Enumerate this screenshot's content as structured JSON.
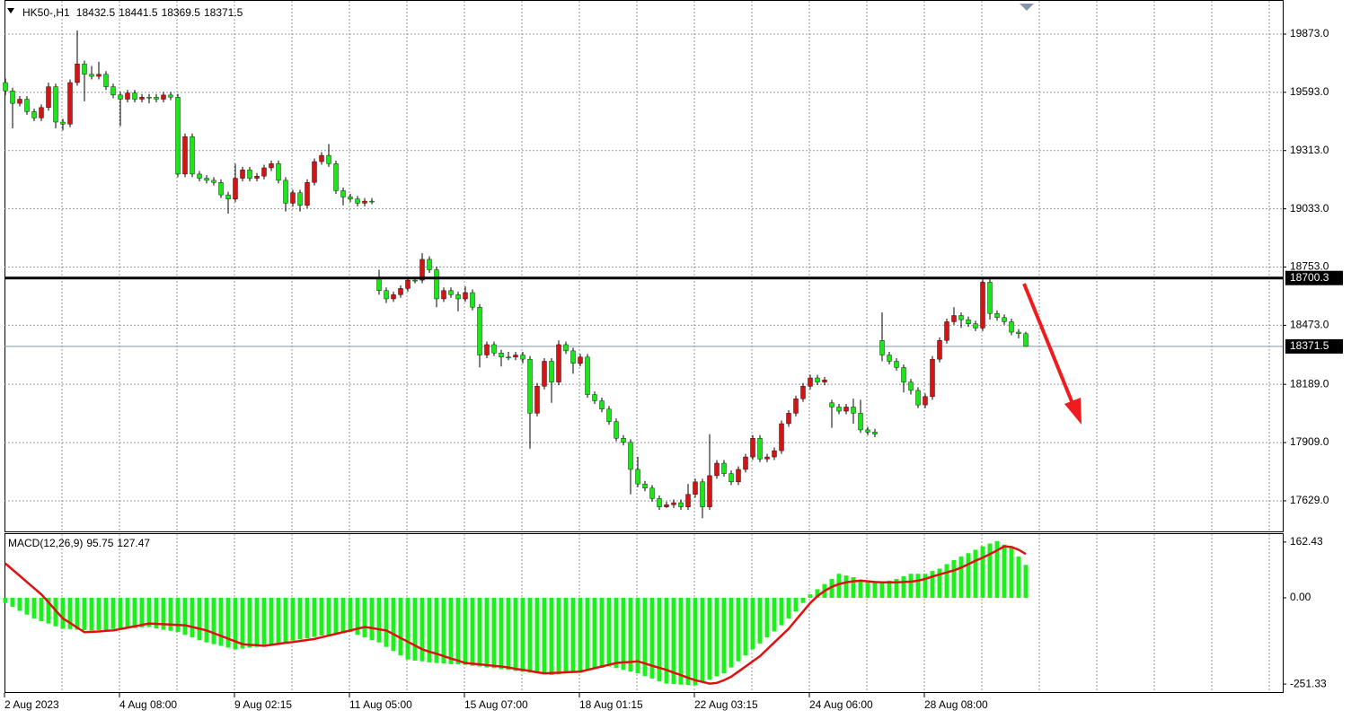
{
  "chart_data": [
    {
      "type": "candlestick",
      "symbol": "HK50-,H1",
      "categories": [
        "2 Aug 2023",
        null,
        null,
        null,
        null,
        null,
        null,
        null,
        null,
        null,
        null,
        null,
        null,
        null,
        null,
        null,
        "4 Aug 08:00",
        null,
        null,
        null,
        null,
        null,
        null,
        null,
        null,
        null,
        null,
        null,
        null,
        null,
        null,
        null,
        "9 Aug 02:15",
        null,
        null,
        null,
        null,
        null,
        null,
        null,
        null,
        null,
        null,
        null,
        null,
        null,
        null,
        null,
        "11 Aug 05:00",
        null,
        null,
        null,
        null,
        null,
        null,
        null,
        null,
        null,
        null,
        null,
        null,
        null,
        null,
        null,
        "15 Aug 07:00",
        null,
        null,
        null,
        null,
        null,
        null,
        null,
        null,
        null,
        null,
        null,
        null,
        null,
        null,
        null,
        "18 Aug 01:15",
        null,
        null,
        null,
        null,
        null,
        null,
        null,
        null,
        null,
        null,
        null,
        null,
        null,
        null,
        null,
        "22 Aug 03:15",
        null,
        null,
        null,
        null,
        null,
        null,
        null,
        null,
        null,
        null,
        null,
        null,
        null,
        null,
        null,
        "24 Aug 06:00",
        null,
        null,
        null,
        null,
        null,
        null,
        null,
        null,
        null,
        null,
        null,
        null,
        null,
        null,
        null,
        "28 Aug 08:00",
        null,
        null,
        null,
        null,
        null,
        null,
        null,
        null,
        null,
        null,
        null,
        null,
        null,
        null
      ],
      "candles": [
        [
          19640,
          19660,
          19580,
          19600
        ],
        [
          19600,
          19615,
          19420,
          19540
        ],
        [
          19540,
          19575,
          19525,
          19560
        ],
        [
          19560,
          19575,
          19485,
          19500
        ],
        [
          19500,
          19515,
          19455,
          19470
        ],
        [
          19470,
          19535,
          19455,
          19520
        ],
        [
          19520,
          19640,
          19505,
          19620
        ],
        [
          19620,
          19635,
          19420,
          19450
        ],
        [
          19450,
          19465,
          19410,
          19440
        ],
        [
          19440,
          19655,
          19425,
          19640
        ],
        [
          19640,
          19890,
          19625,
          19730
        ],
        [
          19730,
          19745,
          19550,
          19680
        ],
        [
          19680,
          19720,
          19655,
          19670
        ],
        [
          19670,
          19740,
          19655,
          19680
        ],
        [
          19680,
          19695,
          19605,
          19620
        ],
        [
          19620,
          19635,
          19565,
          19580
        ],
        [
          19580,
          19595,
          19430,
          19560
        ],
        [
          19560,
          19605,
          19545,
          19590
        ],
        [
          19590,
          19605,
          19545,
          19560
        ],
        [
          19560,
          19585,
          19545,
          19570
        ],
        [
          19570,
          19585,
          19540,
          19570
        ],
        [
          19570,
          19585,
          19545,
          19560
        ],
        [
          19560,
          19595,
          19545,
          19580
        ],
        [
          19580,
          19595,
          19555,
          19570
        ],
        [
          19570,
          19585,
          19185,
          19200
        ],
        [
          19200,
          19395,
          19185,
          19380
        ],
        [
          19380,
          19395,
          19185,
          19200
        ],
        [
          19200,
          19215,
          19165,
          19180
        ],
        [
          19180,
          19195,
          19155,
          19170
        ],
        [
          19170,
          19185,
          19145,
          19160
        ],
        [
          19160,
          19175,
          19085,
          19100
        ],
        [
          19100,
          19115,
          19010,
          19080
        ],
        [
          19080,
          19250,
          19065,
          19180
        ],
        [
          19180,
          19235,
          19165,
          19220
        ],
        [
          19220,
          19235,
          19165,
          19180
        ],
        [
          19180,
          19205,
          19165,
          19190
        ],
        [
          19190,
          19245,
          19175,
          19230
        ],
        [
          19230,
          19265,
          19215,
          19250
        ],
        [
          19250,
          19265,
          19155,
          19170
        ],
        [
          19170,
          19185,
          19020,
          19060
        ],
        [
          19060,
          19125,
          19045,
          19110
        ],
        [
          19110,
          19125,
          19020,
          19050
        ],
        [
          19050,
          19175,
          19035,
          19160
        ],
        [
          19160,
          19275,
          19145,
          19260
        ],
        [
          19260,
          19305,
          19245,
          19290
        ],
        [
          19290,
          19345,
          19235,
          19250
        ],
        [
          19250,
          19265,
          19105,
          19120
        ],
        [
          19120,
          19135,
          19050,
          19090
        ],
        [
          19090,
          19105,
          19065,
          19080
        ],
        [
          19080,
          19095,
          19045,
          19060
        ],
        [
          19060,
          19085,
          19045,
          19070
        ],
        [
          19070,
          19085,
          19055,
          19070
        ],
        [
          18700,
          18740,
          18620,
          18640
        ],
        [
          18640,
          18655,
          18580,
          18600
        ],
        [
          18600,
          18635,
          18585,
          18620
        ],
        [
          18620,
          18665,
          18605,
          18650
        ],
        [
          18650,
          18705,
          18635,
          18690
        ],
        [
          18690,
          18705,
          18675,
          18690
        ],
        [
          18690,
          18820,
          18675,
          18790
        ],
        [
          18790,
          18805,
          18725,
          18740
        ],
        [
          18740,
          18755,
          18560,
          18600
        ],
        [
          18600,
          18655,
          18585,
          18640
        ],
        [
          18640,
          18655,
          18605,
          18620
        ],
        [
          18620,
          18635,
          18540,
          18600
        ],
        [
          18600,
          18660,
          18585,
          18630
        ],
        [
          18630,
          18645,
          18545,
          18560
        ],
        [
          18560,
          18575,
          18270,
          18330
        ],
        [
          18330,
          18395,
          18315,
          18380
        ],
        [
          18380,
          18395,
          18325,
          18340
        ],
        [
          18340,
          18355,
          18275,
          18320
        ],
        [
          18320,
          18345,
          18305,
          18320
        ],
        [
          18320,
          18345,
          18305,
          18330
        ],
        [
          18330,
          18345,
          18290,
          18310
        ],
        [
          18310,
          18325,
          17880,
          18050
        ],
        [
          18050,
          18195,
          18035,
          18180
        ],
        [
          18180,
          18315,
          18165,
          18300
        ],
        [
          18300,
          18315,
          18100,
          18200
        ],
        [
          18200,
          18400,
          18185,
          18380
        ],
        [
          18380,
          18395,
          18335,
          18350
        ],
        [
          18350,
          18365,
          18240,
          18290
        ],
        [
          18290,
          18335,
          18275,
          18320
        ],
        [
          18320,
          18335,
          18125,
          18140
        ],
        [
          18140,
          18155,
          18095,
          18110
        ],
        [
          18110,
          18125,
          18055,
          18070
        ],
        [
          18070,
          18085,
          17995,
          18010
        ],
        [
          18010,
          18025,
          17915,
          17930
        ],
        [
          17930,
          17945,
          17895,
          17910
        ],
        [
          17910,
          17925,
          17660,
          17780
        ],
        [
          17780,
          17840,
          17695,
          17710
        ],
        [
          17710,
          17725,
          17675,
          17690
        ],
        [
          17690,
          17705,
          17625,
          17640
        ],
        [
          17640,
          17655,
          17585,
          17600
        ],
        [
          17600,
          17625,
          17595,
          17610
        ],
        [
          17610,
          17635,
          17595,
          17620
        ],
        [
          17620,
          17635,
          17585,
          17600
        ],
        [
          17600,
          17710,
          17585,
          17660
        ],
        [
          17660,
          17735,
          17645,
          17720
        ],
        [
          17720,
          17735,
          17545,
          17600
        ],
        [
          17600,
          17950,
          17585,
          17750
        ],
        [
          17750,
          17825,
          17735,
          17810
        ],
        [
          17810,
          17825,
          17745,
          17760
        ],
        [
          17760,
          17775,
          17705,
          17720
        ],
        [
          17720,
          17795,
          17705,
          17780
        ],
        [
          17780,
          17855,
          17765,
          17840
        ],
        [
          17840,
          17945,
          17825,
          17930
        ],
        [
          17930,
          17945,
          17815,
          17830
        ],
        [
          17830,
          17855,
          17815,
          17840
        ],
        [
          17840,
          17885,
          17825,
          17870
        ],
        [
          17870,
          18015,
          17855,
          18000
        ],
        [
          18000,
          18065,
          17985,
          18050
        ],
        [
          18050,
          18135,
          18035,
          18120
        ],
        [
          18120,
          18195,
          18105,
          18180
        ],
        [
          18180,
          18235,
          18165,
          18220
        ],
        [
          18220,
          18235,
          18185,
          18200
        ],
        [
          18200,
          18225,
          18185,
          18210
        ],
        [
          18100,
          18115,
          17980,
          18080
        ],
        [
          18080,
          18095,
          18045,
          18060
        ],
        [
          18060,
          18095,
          18045,
          18080
        ],
        [
          18080,
          18120,
          18000,
          18050
        ],
        [
          18050,
          18115,
          17955,
          17970
        ],
        [
          17970,
          17985,
          17945,
          17960
        ],
        [
          17960,
          17975,
          17935,
          17950
        ],
        [
          18400,
          18535,
          18300,
          18330
        ],
        [
          18330,
          18345,
          18285,
          18300
        ],
        [
          18300,
          18315,
          18255,
          18270
        ],
        [
          18270,
          18285,
          18150,
          18200
        ],
        [
          18200,
          18215,
          18140,
          18160
        ],
        [
          18160,
          18175,
          18075,
          18090
        ],
        [
          18090,
          18145,
          18075,
          18130
        ],
        [
          18130,
          18325,
          18115,
          18310
        ],
        [
          18310,
          18415,
          18295,
          18400
        ],
        [
          18400,
          18505,
          18385,
          18490
        ],
        [
          18490,
          18560,
          18475,
          18520
        ],
        [
          18520,
          18535,
          18460,
          18500
        ],
        [
          18500,
          18515,
          18465,
          18480
        ],
        [
          18480,
          18495,
          18445,
          18460
        ],
        [
          18460,
          18700,
          18445,
          18680
        ],
        [
          18680,
          18695,
          18500,
          18530
        ],
        [
          18530,
          18545,
          18495,
          18510
        ],
        [
          18510,
          18525,
          18475,
          18490
        ],
        [
          18490,
          18505,
          18425,
          18440
        ],
        [
          18440,
          18455,
          18410,
          18432.5
        ],
        [
          18432.5,
          18441.5,
          18369.5,
          18371.5
        ]
      ],
      "up_color": "#d41414",
      "down_color": "#18e818",
      "ylim": [
        17482,
        20037
      ],
      "yticks": [
        {
          "value": 17629,
          "label": "17629.0"
        },
        {
          "value": 17909,
          "label": "17909.0"
        },
        {
          "value": 18189,
          "label": "18189.0"
        },
        {
          "value": 18473,
          "label": "18473.0"
        },
        {
          "value": 18753,
          "label": "18753.0"
        },
        {
          "value": 19033,
          "label": "19033.0"
        },
        {
          "value": 19313,
          "label": "19313.0"
        },
        {
          "value": 19593,
          "label": "19593.0"
        },
        {
          "value": 19873,
          "label": "19873.0"
        }
      ],
      "grid": true,
      "hlines": [
        {
          "value": 18700.3,
          "color": "#000000"
        }
      ]
    },
    {
      "type": "macd",
      "title": "MACD(12,26,9)",
      "histogram": [
        -15,
        -26,
        -38,
        -49,
        -60,
        -68,
        -75,
        -83,
        -90,
        -91,
        -93,
        -94,
        -95,
        -94,
        -93,
        -91,
        -90,
        -89,
        -88,
        -86,
        -85,
        -89,
        -93,
        -96,
        -100,
        -108,
        -115,
        -123,
        -130,
        -135,
        -140,
        -145,
        -150,
        -148,
        -145,
        -143,
        -140,
        -136,
        -133,
        -129,
        -125,
        -121,
        -118,
        -114,
        -110,
        -108,
        -105,
        -103,
        -100,
        -108,
        -115,
        -123,
        -130,
        -143,
        -155,
        -168,
        -180,
        -183,
        -185,
        -188,
        -190,
        -191,
        -193,
        -194,
        -195,
        -198,
        -200,
        -203,
        -205,
        -208,
        -210,
        -213,
        -215,
        -218,
        -220,
        -223,
        -225,
        -223,
        -220,
        -218,
        -215,
        -211,
        -208,
        -204,
        -200,
        -205,
        -210,
        -215,
        -220,
        -228,
        -235,
        -243,
        -250,
        -251,
        -253,
        -254,
        -255,
        -246,
        -238,
        -229,
        -220,
        -203,
        -185,
        -168,
        -150,
        -133,
        -115,
        -98,
        -80,
        -60,
        -40,
        -15,
        10,
        25,
        40,
        55,
        70,
        65,
        60,
        53,
        45,
        45,
        45,
        50,
        55,
        63,
        70,
        70,
        70,
        78,
        85,
        98,
        110,
        120,
        130,
        140,
        150,
        158,
        165,
        155,
        145,
        120,
        95.75
      ],
      "signal": [
        100,
        82,
        64,
        46,
        28,
        10,
        -13,
        -37,
        -60,
        -73,
        -87,
        -100,
        -99,
        -98,
        -96,
        -95,
        -91,
        -87,
        -83,
        -79,
        -75,
        -76,
        -77,
        -78,
        -79,
        -80,
        -85,
        -90,
        -95,
        -103,
        -111,
        -119,
        -127,
        -135,
        -137,
        -138,
        -140,
        -137,
        -134,
        -131,
        -129,
        -126,
        -123,
        -120,
        -115,
        -110,
        -105,
        -100,
        -95,
        -90,
        -85,
        -88,
        -92,
        -95,
        -106,
        -117,
        -128,
        -139,
        -150,
        -157,
        -163,
        -170,
        -177,
        -183,
        -190,
        -192,
        -194,
        -196,
        -198,
        -200,
        -203,
        -207,
        -210,
        -213,
        -217,
        -220,
        -219,
        -218,
        -217,
        -216,
        -215,
        -210,
        -205,
        -200,
        -195,
        -190,
        -188,
        -187,
        -185,
        -191,
        -198,
        -204,
        -210,
        -218,
        -225,
        -233,
        -240,
        -245,
        -250,
        -248,
        -240,
        -230,
        -215,
        -200,
        -185,
        -170,
        -150,
        -130,
        -110,
        -90,
        -65,
        -40,
        -15,
        5,
        20,
        32,
        40,
        45,
        48,
        50,
        48,
        46,
        45,
        45,
        45,
        46,
        47,
        50,
        55,
        62,
        68,
        74,
        80,
        88,
        98,
        108,
        117,
        127,
        138,
        150,
        148,
        140,
        127.47
      ],
      "histogram_color": "#1ef01e",
      "signal_color": "#e01010",
      "ylim": [
        -272,
        183
      ],
      "yticks": [
        162.43,
        {
          "value": 0,
          "label": "0.00"
        },
        -251.33
      ]
    }
  ]
}
